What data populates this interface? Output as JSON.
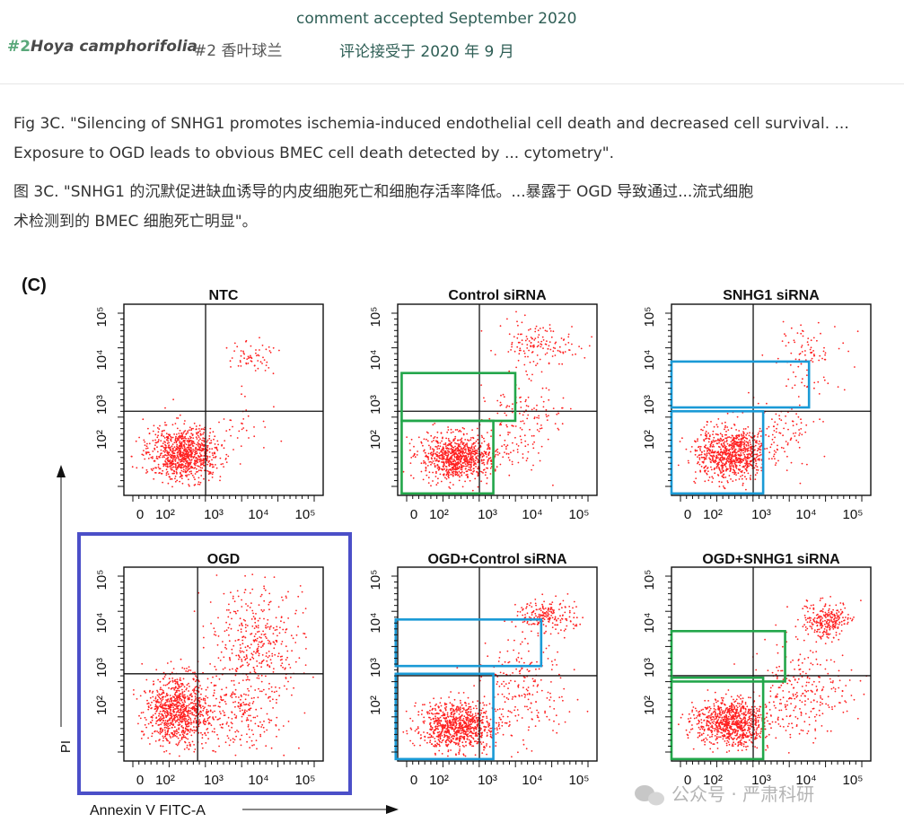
{
  "header": {
    "accepted_en": "comment accepted September 2020",
    "number": "#2",
    "species": "Hoya camphorifolia",
    "cn_name": "#2 香叶球兰",
    "accepted_cn": "评论接受于 2020 年 9 月"
  },
  "caption": {
    "en_line1": "Fig 3C. \"Silencing of SNHG1 promotes ischemia-induced endothelial cell death and decreased cell survival. ...",
    "en_line2": "Exposure to OGD leads to obvious BMEC cell death detected by ... cytometry\".",
    "cn_line1": "图 3C. \"SNHG1 的沉默促进缺血诱导的内皮细胞死亡和细胞存活率降低。...暴露于 OGD 导致通过...流式细胞",
    "cn_line2": "术检测到的 BMEC 细胞死亡明显\"。"
  },
  "figure": {
    "panel_label": "(C)",
    "y_axis_label": "PI",
    "x_axis_label": "Annexin V FITC-A",
    "tick_labels": [
      "0",
      "10²",
      "10³",
      "10⁴",
      "10⁵"
    ],
    "colors": {
      "dots": "#ff2020",
      "green_box": "#22a64a",
      "blue_box": "#1a9ad6",
      "highlight_frame": "#4b4fc8"
    },
    "panels": [
      {
        "title": "NTC",
        "highlighted": false,
        "boxes": []
      },
      {
        "title": "Control siRNA",
        "highlighted": false,
        "boxes": [
          "green",
          "green"
        ]
      },
      {
        "title": "SNHG1 siRNA",
        "highlighted": false,
        "boxes": [
          "blue",
          "blue"
        ]
      },
      {
        "title": "OGD",
        "highlighted": true,
        "boxes": []
      },
      {
        "title": "OGD+Control siRNA",
        "highlighted": false,
        "boxes": [
          "blue",
          "blue"
        ]
      },
      {
        "title": "OGD+SNHG1 siRNA",
        "highlighted": false,
        "boxes": [
          "green",
          "green"
        ]
      }
    ]
  },
  "watermark": {
    "text": "公众号 · 严肃科研",
    "icon": "wechat-icon"
  }
}
